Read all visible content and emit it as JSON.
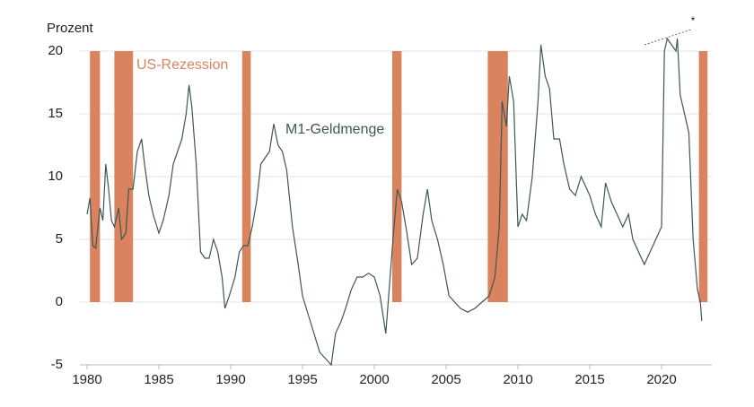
{
  "chart_data": {
    "type": "line",
    "y_label": "Prozent",
    "annotations": [
      "US-Rezession",
      "M1-Geldmenge",
      "*"
    ],
    "series": [
      {
        "name": "M1-Geldmenge",
        "color": "#3e5656",
        "x": [
          1980.0,
          1980.2,
          1980.4,
          1980.6,
          1980.9,
          1981.1,
          1981.3,
          1981.5,
          1981.7,
          1981.9,
          1982.2,
          1982.4,
          1982.7,
          1982.9,
          1983.2,
          1983.5,
          1983.8,
          1984.0,
          1984.3,
          1984.6,
          1985.0,
          1985.3,
          1985.7,
          1986.0,
          1986.3,
          1986.6,
          1986.9,
          1987.1,
          1987.3,
          1987.6,
          1987.9,
          1988.2,
          1988.5,
          1988.8,
          1989.1,
          1989.4,
          1989.6,
          1989.9,
          1990.3,
          1990.6,
          1990.9,
          1991.2,
          1991.5,
          1991.8,
          1992.1,
          1992.4,
          1992.7,
          1993.0,
          1993.3,
          1993.6,
          1993.9,
          1994.3,
          1994.7,
          1995.0,
          1995.4,
          1995.8,
          1996.2,
          1996.6,
          1997.0,
          1997.3,
          1997.7,
          1998.0,
          1998.4,
          1998.8,
          1999.2,
          1999.6,
          2000.0,
          2000.4,
          2000.8,
          2001.0,
          2001.3,
          2001.6,
          2001.9,
          2002.2,
          2002.6,
          2003.0,
          2003.4,
          2003.7,
          2004.0,
          2004.4,
          2004.8,
          2005.2,
          2005.6,
          2006.0,
          2006.5,
          2007.0,
          2007.5,
          2008.0,
          2008.4,
          2008.7,
          2008.9,
          2009.2,
          2009.4,
          2009.7,
          2010.0,
          2010.3,
          2010.6,
          2011.0,
          2011.4,
          2011.6,
          2011.9,
          2012.2,
          2012.5,
          2012.9,
          2013.2,
          2013.6,
          2014.0,
          2014.4,
          2014.8,
          2015.0,
          2015.4,
          2015.8,
          2016.1,
          2016.5,
          2016.9,
          2017.3,
          2017.7,
          2018.0,
          2018.4,
          2018.8,
          2019.2,
          2019.6,
          2020.0,
          2020.2,
          2020.4,
          2020.7,
          2021.0,
          2021.1,
          2021.3,
          2021.6,
          2021.9,
          2022.2,
          2022.5,
          2022.7,
          2022.8
        ],
        "values": [
          7,
          8.3,
          4.5,
          4.3,
          7.5,
          6.5,
          11,
          9,
          6.5,
          6,
          7.5,
          5,
          5.5,
          9,
          9,
          12,
          13,
          11,
          8.5,
          7,
          5.5,
          6.5,
          8.5,
          11,
          12,
          13,
          15,
          17.3,
          15.5,
          11,
          4,
          3.5,
          3.5,
          5,
          4,
          2,
          -0.5,
          0.5,
          2,
          4,
          4.5,
          4.5,
          6,
          8,
          11,
          11.5,
          12,
          14.2,
          12.5,
          12,
          10.5,
          6,
          3,
          0.5,
          -1,
          -2.5,
          -4,
          -4.5,
          -5,
          -2.5,
          -1.5,
          -0.5,
          1,
          2,
          2,
          2.3,
          2,
          0.5,
          -2.5,
          0.5,
          5,
          9,
          8,
          6,
          3,
          3.5,
          7,
          9,
          6.5,
          5,
          3,
          0.5,
          0,
          -0.5,
          -0.8,
          -0.5,
          0,
          0.5,
          2,
          6,
          16,
          14,
          18,
          16,
          6,
          7,
          6.5,
          10,
          16,
          20.5,
          18,
          17,
          13,
          13,
          11,
          9,
          8.5,
          10,
          9,
          8.5,
          7,
          6,
          9.5,
          8,
          7,
          6,
          7,
          5,
          4,
          3,
          4,
          5,
          6,
          20,
          21,
          20.5,
          20,
          21,
          16.5,
          15,
          13.5,
          5,
          1,
          0,
          -1.5
        ]
      }
    ],
    "recessions": {
      "name": "US-Rezession",
      "color": "#d9845e",
      "start": [
        1980.2,
        1981.9,
        1990.8,
        2001.25,
        2007.9,
        2022.6
      ],
      "end": [
        1980.9,
        1983.2,
        1991.4,
        2001.9,
        2009.3,
        2023.2
      ]
    },
    "xlim": [
      1979.5,
      2023.5
    ],
    "xticks": [
      1980,
      1985,
      1990,
      1995,
      2000,
      2005,
      2010,
      2015,
      2020
    ],
    "ylim": [
      -5,
      20
    ],
    "yticks": [
      -5,
      0,
      5,
      10,
      15,
      20
    ],
    "grid": true
  }
}
